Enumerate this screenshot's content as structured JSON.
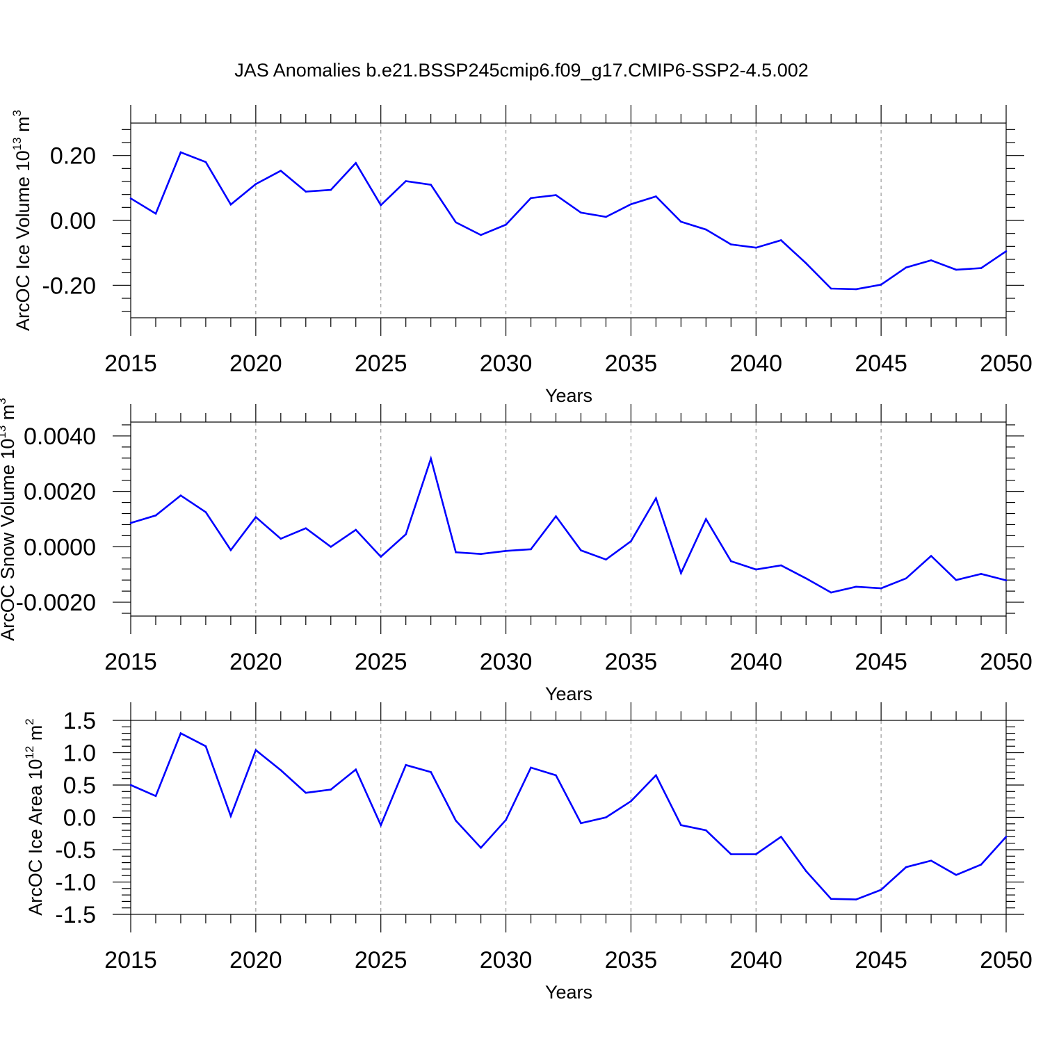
{
  "title": "JAS Anomalies b.e21.BSSP245cmip6.f09_g17.CMIP6-SSP2-4.5.002",
  "colors": {
    "line": "#0000ff",
    "axis": "#000000",
    "grid": "#999999"
  },
  "chart_data": [
    {
      "type": "line",
      "name": "ice-volume",
      "xlabel": "Years",
      "ylabel": {
        "text": "ArcOC Ice Volume 10",
        "sup1": "13",
        "unit": " m",
        "sup2": "3"
      },
      "xlim": [
        2015,
        2050
      ],
      "ylim": [
        -0.3,
        0.3
      ],
      "yticks": [
        -0.2,
        0.0,
        0.2
      ],
      "ytick_labels": [
        "-0.20",
        "0.00",
        "0.20"
      ],
      "xticks": [
        2015,
        2020,
        2025,
        2030,
        2035,
        2040,
        2045,
        2050
      ],
      "xtick_labels": [
        "2015",
        "2020",
        "2025",
        "2030",
        "2035",
        "2040",
        "2045",
        "2050"
      ],
      "x": [
        2015,
        2016,
        2017,
        2018,
        2019,
        2020,
        2021,
        2022,
        2023,
        2024,
        2025,
        2026,
        2027,
        2028,
        2029,
        2030,
        2031,
        2032,
        2033,
        2034,
        2035,
        2036,
        2037,
        2038,
        2039,
        2040,
        2041,
        2042,
        2043,
        2044,
        2045,
        2046,
        2047,
        2048,
        2049,
        2050
      ],
      "values": [
        0.068,
        0.021,
        0.21,
        0.18,
        0.049,
        0.112,
        0.153,
        0.089,
        0.094,
        0.177,
        0.047,
        0.121,
        0.11,
        -0.006,
        -0.045,
        -0.013,
        0.069,
        0.078,
        0.024,
        0.011,
        0.05,
        0.074,
        -0.004,
        -0.028,
        -0.074,
        -0.084,
        -0.061,
        -0.132,
        -0.21,
        -0.212,
        -0.198,
        -0.145,
        -0.123,
        -0.152,
        -0.147,
        -0.095
      ]
    },
    {
      "type": "line",
      "name": "snow-volume",
      "xlabel": "Years",
      "ylabel": {
        "text": "ArcOC Snow Volume 10",
        "sup1": "13",
        "unit": " m",
        "sup2": "3"
      },
      "xlim": [
        2015,
        2050
      ],
      "ylim": [
        -0.0025,
        0.0045
      ],
      "yticks": [
        -0.002,
        0.0,
        0.002,
        0.004
      ],
      "ytick_labels": [
        "-0.0020",
        "0.0000",
        "0.0020",
        "0.0040"
      ],
      "xticks": [
        2015,
        2020,
        2025,
        2030,
        2035,
        2040,
        2045,
        2050
      ],
      "xtick_labels": [
        "2015",
        "2020",
        "2025",
        "2030",
        "2035",
        "2040",
        "2045",
        "2050"
      ],
      "x": [
        2015,
        2016,
        2017,
        2018,
        2019,
        2020,
        2021,
        2022,
        2023,
        2024,
        2025,
        2026,
        2027,
        2028,
        2029,
        2030,
        2031,
        2032,
        2033,
        2034,
        2035,
        2036,
        2037,
        2038,
        2039,
        2040,
        2041,
        2042,
        2043,
        2044,
        2045,
        2046,
        2047,
        2048,
        2049,
        2050
      ],
      "values": [
        0.00086,
        0.00113,
        0.00185,
        0.00125,
        -0.00012,
        0.00107,
        0.00029,
        0.00067,
        0.0,
        0.00061,
        -0.00036,
        0.00045,
        0.00318,
        -0.0002,
        -0.00026,
        -0.00015,
        -9e-05,
        0.0011,
        -0.00013,
        -0.00046,
        0.0002,
        0.00175,
        -0.00095,
        0.001,
        -0.00052,
        -0.00082,
        -0.00067,
        -0.00114,
        -0.00165,
        -0.00144,
        -0.0015,
        -0.00114,
        -0.00033,
        -0.0012,
        -0.00098,
        -0.00121
      ]
    },
    {
      "type": "line",
      "name": "ice-area",
      "xlabel": "Years",
      "ylabel": {
        "text": "ArcOC Ice Area 10",
        "sup1": "12",
        "unit": " m",
        "sup2": "2"
      },
      "xlim": [
        2015,
        2050
      ],
      "ylim": [
        -1.5,
        1.5
      ],
      "yticks": [
        -1.5,
        -1.0,
        -0.5,
        0.0,
        0.5,
        1.0,
        1.5
      ],
      "ytick_labels": [
        "-1.5",
        "-1.0",
        "-0.5",
        "0.0",
        "0.5",
        "1.0",
        "1.5"
      ],
      "xticks": [
        2015,
        2020,
        2025,
        2030,
        2035,
        2040,
        2045,
        2050
      ],
      "xtick_labels": [
        "2015",
        "2020",
        "2025",
        "2030",
        "2035",
        "2040",
        "2045",
        "2050"
      ],
      "x": [
        2015,
        2016,
        2017,
        2018,
        2019,
        2020,
        2021,
        2022,
        2023,
        2024,
        2025,
        2026,
        2027,
        2028,
        2029,
        2030,
        2031,
        2032,
        2033,
        2034,
        2035,
        2036,
        2037,
        2038,
        2039,
        2040,
        2041,
        2042,
        2043,
        2044,
        2045,
        2046,
        2047,
        2048,
        2049,
        2050
      ],
      "values": [
        0.5,
        0.33,
        1.3,
        1.1,
        0.02,
        1.04,
        0.73,
        0.38,
        0.43,
        0.74,
        -0.12,
        0.81,
        0.7,
        -0.05,
        -0.47,
        -0.04,
        0.77,
        0.65,
        -0.09,
        0.0,
        0.25,
        0.65,
        -0.12,
        -0.2,
        -0.57,
        -0.57,
        -0.3,
        -0.83,
        -1.26,
        -1.27,
        -1.12,
        -0.77,
        -0.67,
        -0.89,
        -0.73,
        -0.3
      ]
    }
  ]
}
